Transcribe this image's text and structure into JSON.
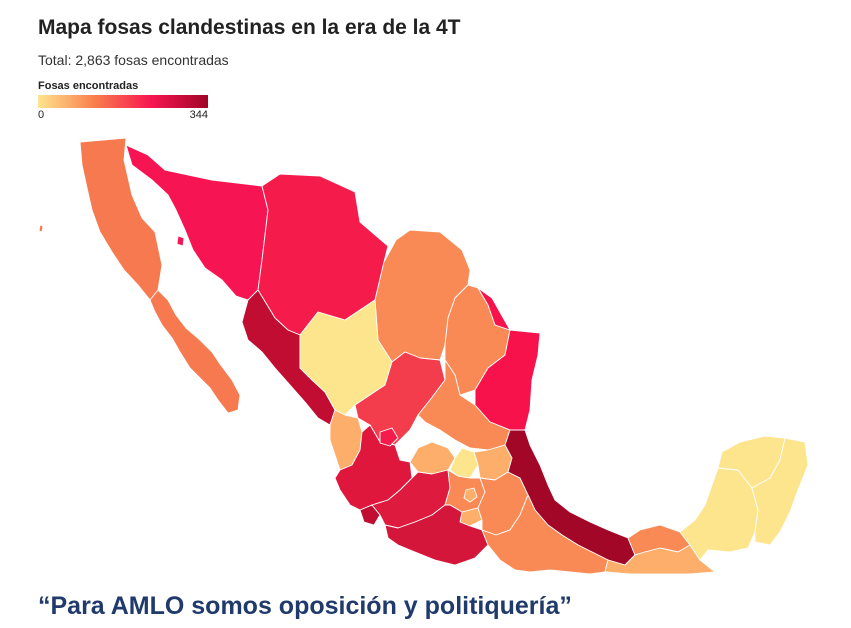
{
  "title": "Mapa fosas clandestinas en la era de la 4T",
  "subtitle": "Total: 2,863 fosas encontradas",
  "legend": {
    "title": "Fosas encontradas",
    "min_label": "0",
    "max_label": "344",
    "min_value": 0,
    "max_value": 344,
    "gradient_colors": [
      "#fde58e",
      "#f97e4d",
      "#f71650",
      "#9f0627"
    ]
  },
  "map": {
    "type": "choropleth",
    "region": "México",
    "water_color": "#ffffff",
    "state_colors": {
      "baja-california": "#f7794f",
      "baja-california-sur": "#f7794f",
      "sonora": "#f71452",
      "chihuahua": "#f51b4a",
      "coahuila": "#fa8a55",
      "nuevo-leon": "#fa8a55",
      "tamaulipas": "#f7124c",
      "sinaloa": "#c00d31",
      "durango": "#fde58e",
      "zacatecas": "#f33d4d",
      "san-luis-potosi": "#fa8a55",
      "nayarit": "#fcae6a",
      "jalisco": "#e0173d",
      "aguascalientes": "#f51b4a",
      "guanajuato": "#fcae6a",
      "queretaro": "#fde58e",
      "hidalgo": "#fcae6a",
      "colima": "#c00d31",
      "michoacan": "#de1a3e",
      "estado-de-mexico": "#fa8a55",
      "ciudad-de-mexico": "#fcae6a",
      "morelos": "#fcae6a",
      "tlaxcala": "#fcae6a",
      "puebla": "#fa8a55",
      "guerrero": "#d4163a",
      "veracruz": "#a30727",
      "oaxaca": "#fa8a55",
      "chiapas": "#fcae6a",
      "tabasco": "#fa8a55",
      "campeche": "#fde58e",
      "yucatan": "#fde58e",
      "quintana-roo": "#fde58e"
    }
  },
  "quote": "“Para AMLO somos oposición y politiquería”"
}
